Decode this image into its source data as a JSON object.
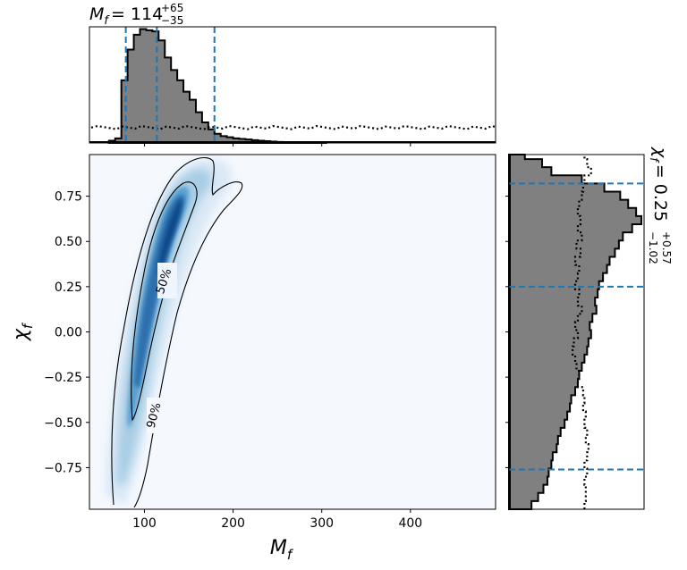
{
  "chart_data": {
    "type": "corner",
    "top_title": {
      "symbol": "M",
      "sub": "f",
      "value": "114",
      "upper": "+65",
      "lower": "−35"
    },
    "right_title": {
      "symbol": "χ",
      "sub": "f",
      "value": "0.25",
      "upper": "+0.57",
      "lower": "−1.02"
    },
    "xlabel": {
      "symbol": "M",
      "sub": "f"
    },
    "ylabel": {
      "symbol": "χ",
      "sub": "f"
    },
    "xlim": [
      38,
      496
    ],
    "ylim": [
      -0.98,
      0.98
    ],
    "xticks": [
      100,
      200,
      300,
      400
    ],
    "xtick_labels": [
      "100",
      "200",
      "300",
      "400"
    ],
    "yticks": [
      0.75,
      0.5,
      0.25,
      0.0,
      -0.25,
      -0.5,
      -0.75
    ],
    "ytick_labels": [
      "0.75",
      "0.50",
      "0.25",
      "0.00",
      "−0.25",
      "−0.50",
      "−0.75"
    ],
    "mf_quantiles": [
      79,
      114,
      179
    ],
    "chi_quantiles": [
      -0.76,
      0.25,
      0.82
    ],
    "contour_labels": [
      "50%",
      "90%"
    ],
    "mf_hist": {
      "edges": [
        60,
        67,
        74,
        81,
        88,
        95,
        102,
        109,
        116,
        123,
        130,
        137,
        144,
        151,
        158,
        165,
        172,
        179,
        186,
        193,
        200,
        207,
        214,
        221,
        228,
        235,
        242,
        249,
        256,
        263,
        270,
        277,
        284,
        291,
        298,
        305
      ],
      "posterior": [
        0.02,
        0.04,
        0.55,
        0.82,
        0.95,
        1.0,
        0.99,
        0.98,
        0.9,
        0.75,
        0.64,
        0.55,
        0.45,
        0.38,
        0.27,
        0.18,
        0.12,
        0.08,
        0.06,
        0.05,
        0.04,
        0.035,
        0.03,
        0.025,
        0.02,
        0.016,
        0.012,
        0.009,
        0.007,
        0.005,
        0.004,
        0.003,
        0.002,
        0.001,
        0.0005
      ],
      "prior_level": 0.135,
      "ymax": 1.02
    },
    "chi_hist": {
      "edges": [
        -0.98,
        -0.935,
        -0.89,
        -0.845,
        -0.8,
        -0.755,
        -0.71,
        -0.665,
        -0.62,
        -0.575,
        -0.53,
        -0.485,
        -0.44,
        -0.395,
        -0.35,
        -0.305,
        -0.26,
        -0.215,
        -0.17,
        -0.125,
        -0.08,
        -0.035,
        0.01,
        0.055,
        0.1,
        0.145,
        0.19,
        0.235,
        0.28,
        0.325,
        0.37,
        0.415,
        0.46,
        0.505,
        0.55,
        0.595,
        0.64,
        0.685,
        0.73,
        0.775,
        0.82,
        0.865,
        0.91,
        0.955,
        0.98
      ],
      "posterior": [
        0.17,
        0.22,
        0.26,
        0.29,
        0.3,
        0.32,
        0.33,
        0.36,
        0.37,
        0.39,
        0.42,
        0.44,
        0.46,
        0.47,
        0.5,
        0.52,
        0.53,
        0.55,
        0.57,
        0.59,
        0.6,
        0.62,
        0.61,
        0.63,
        0.66,
        0.65,
        0.67,
        0.68,
        0.71,
        0.74,
        0.76,
        0.8,
        0.83,
        0.86,
        0.93,
        1.0,
        0.96,
        0.9,
        0.84,
        0.72,
        0.55,
        0.32,
        0.25,
        0.12
      ],
      "prior": [
        0.57,
        0.58,
        0.58,
        0.57,
        0.59,
        0.57,
        0.59,
        0.6,
        0.58,
        0.59,
        0.57,
        0.58,
        0.56,
        0.57,
        0.56,
        0.52,
        0.53,
        0.51,
        0.5,
        0.48,
        0.49,
        0.52,
        0.5,
        0.52,
        0.55,
        0.52,
        0.53,
        0.5,
        0.52,
        0.53,
        0.5,
        0.54,
        0.51,
        0.55,
        0.52,
        0.54,
        0.52,
        0.53,
        0.55,
        0.56,
        0.57,
        0.62,
        0.59,
        0.57
      ],
      "xmax": 1.02
    }
  }
}
